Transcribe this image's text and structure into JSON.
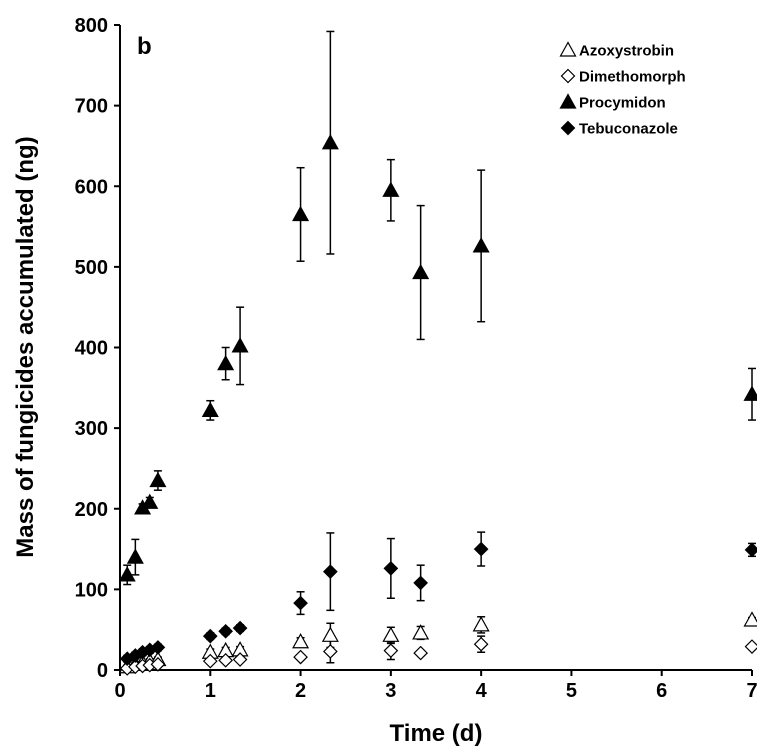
{
  "chart_data": {
    "type": "scatter",
    "panel_label": "b",
    "xlabel": "Time (d)",
    "ylabel": "Mass of fungicides accumulated (ng)",
    "xlim": [
      0,
      7
    ],
    "ylim": [
      0,
      800
    ],
    "x_ticks": [
      0,
      1,
      2,
      3,
      4,
      5,
      6,
      7
    ],
    "y_ticks": [
      0,
      100,
      200,
      300,
      400,
      500,
      600,
      700,
      800
    ],
    "grid": false,
    "legend_position": "top-right",
    "series": [
      {
        "name": "Azoxystrobin",
        "marker": "open-triangle",
        "points": [
          {
            "x": 0.08,
            "y": 4,
            "err": 2
          },
          {
            "x": 0.17,
            "y": 7,
            "err": 2
          },
          {
            "x": 0.25,
            "y": 9,
            "err": 2
          },
          {
            "x": 0.33,
            "y": 11,
            "err": 3
          },
          {
            "x": 0.42,
            "y": 13,
            "err": 3
          },
          {
            "x": 1.0,
            "y": 22,
            "err": 4
          },
          {
            "x": 1.17,
            "y": 24,
            "err": 4
          },
          {
            "x": 1.33,
            "y": 25,
            "err": 4
          },
          {
            "x": 2.0,
            "y": 35,
            "err": 5
          },
          {
            "x": 2.33,
            "y": 43,
            "err": 15
          },
          {
            "x": 3.0,
            "y": 43,
            "err": 10
          },
          {
            "x": 3.33,
            "y": 46,
            "err": 8
          },
          {
            "x": 4.0,
            "y": 56,
            "err": 10
          },
          {
            "x": 7.0,
            "y": 62,
            "err": 3
          }
        ]
      },
      {
        "name": "Dimethomorph",
        "marker": "open-diamond",
        "points": [
          {
            "x": 0.08,
            "y": 2,
            "err": 1
          },
          {
            "x": 0.17,
            "y": 4,
            "err": 1
          },
          {
            "x": 0.25,
            "y": 5,
            "err": 1
          },
          {
            "x": 0.33,
            "y": 6,
            "err": 1
          },
          {
            "x": 0.42,
            "y": 7,
            "err": 1
          },
          {
            "x": 1.0,
            "y": 11,
            "err": 3
          },
          {
            "x": 1.17,
            "y": 12,
            "err": 3
          },
          {
            "x": 1.33,
            "y": 13,
            "err": 3
          },
          {
            "x": 2.0,
            "y": 16,
            "err": 3
          },
          {
            "x": 2.33,
            "y": 23,
            "err": 14
          },
          {
            "x": 3.0,
            "y": 24,
            "err": 11
          },
          {
            "x": 3.33,
            "y": 21,
            "err": 3
          },
          {
            "x": 4.0,
            "y": 32,
            "err": 10
          },
          {
            "x": 7.0,
            "y": 29,
            "err": 3
          }
        ]
      },
      {
        "name": "Procymidon",
        "marker": "filled-triangle",
        "points": [
          {
            "x": 0.08,
            "y": 118,
            "err": 12
          },
          {
            "x": 0.17,
            "y": 140,
            "err": 22
          },
          {
            "x": 0.25,
            "y": 201,
            "err": 5
          },
          {
            "x": 0.33,
            "y": 208,
            "err": 6
          },
          {
            "x": 0.42,
            "y": 235,
            "err": 12
          },
          {
            "x": 1.0,
            "y": 322,
            "err": 12
          },
          {
            "x": 1.17,
            "y": 380,
            "err": 20
          },
          {
            "x": 1.33,
            "y": 402,
            "err": 48
          },
          {
            "x": 2.0,
            "y": 565,
            "err": 58
          },
          {
            "x": 2.33,
            "y": 654,
            "err": 138
          },
          {
            "x": 3.0,
            "y": 595,
            "err": 38
          },
          {
            "x": 3.33,
            "y": 493,
            "err": 83
          },
          {
            "x": 4.0,
            "y": 526,
            "err": 94
          },
          {
            "x": 7.0,
            "y": 342,
            "err": 32
          }
        ]
      },
      {
        "name": "Tebuconazole",
        "marker": "filled-diamond",
        "points": [
          {
            "x": 0.08,
            "y": 14,
            "err": 4
          },
          {
            "x": 0.17,
            "y": 18,
            "err": 4
          },
          {
            "x": 0.25,
            "y": 22,
            "err": 4
          },
          {
            "x": 0.33,
            "y": 25,
            "err": 4
          },
          {
            "x": 0.42,
            "y": 28,
            "err": 4
          },
          {
            "x": 1.0,
            "y": 42,
            "err": 4
          },
          {
            "x": 1.17,
            "y": 48,
            "err": 4
          },
          {
            "x": 1.33,
            "y": 52,
            "err": 4
          },
          {
            "x": 2.0,
            "y": 83,
            "err": 14
          },
          {
            "x": 2.33,
            "y": 122,
            "err": 48
          },
          {
            "x": 3.0,
            "y": 126,
            "err": 37
          },
          {
            "x": 3.33,
            "y": 108,
            "err": 22
          },
          {
            "x": 4.0,
            "y": 150,
            "err": 21
          },
          {
            "x": 7.0,
            "y": 149,
            "err": 8
          }
        ]
      }
    ]
  }
}
